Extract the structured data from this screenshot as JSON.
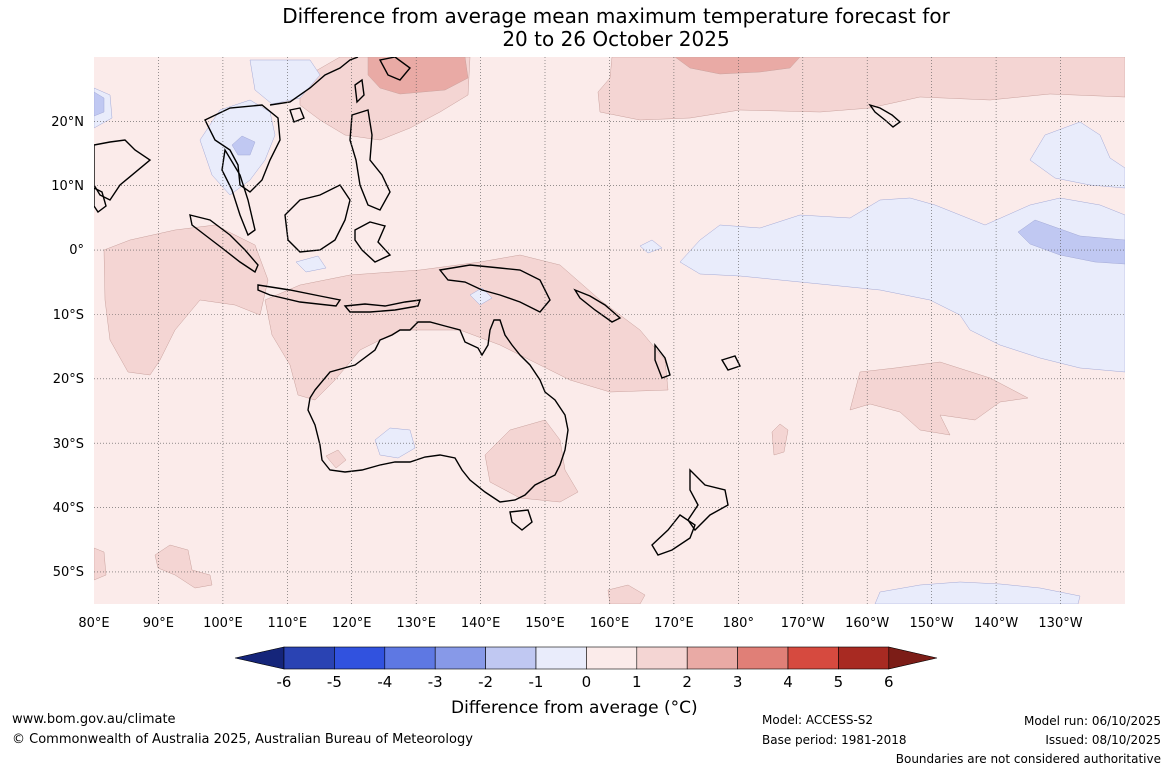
{
  "title": {
    "line1": "Difference from average mean maximum temperature forecast for",
    "line2": "20 to 26 October 2025"
  },
  "map": {
    "lon_ticks": [
      "80°E",
      "90°E",
      "100°E",
      "110°E",
      "120°E",
      "130°E",
      "140°E",
      "150°E",
      "160°E",
      "170°E",
      "180°",
      "170°W",
      "160°W",
      "150°W",
      "140°W",
      "130°W"
    ],
    "lat_ticks": [
      "20°N",
      "10°N",
      "0°",
      "10°S",
      "20°S",
      "30°S",
      "40°S",
      "50°S"
    ],
    "lon_range_deg_east": [
      80,
      240
    ],
    "lat_range_deg": [
      -55,
      30
    ]
  },
  "legend": {
    "ticks": [
      "-6",
      "-5",
      "-4",
      "-3",
      "-2",
      "-1",
      "0",
      "1",
      "2",
      "3",
      "4",
      "5",
      "6"
    ],
    "colors": [
      "#15257a",
      "#2a43b3",
      "#3152df",
      "#5e78e3",
      "#8799e8",
      "#c0c8f2",
      "#e9ecfb",
      "#fbebea",
      "#f4d5d3",
      "#e9aaa5",
      "#e07f77",
      "#d64a3f",
      "#a82a22",
      "#7c1d17"
    ],
    "label": "Difference from average (°C)"
  },
  "footer": {
    "website": "www.bom.gov.au/climate",
    "copyright": "© Commonwealth of Australia 2025, Australian Bureau of Meteorology",
    "model": "Model: ACCESS-S2",
    "base_period": "Base period: 1981-2018",
    "model_run": "Model run: 06/10/2025",
    "issued": "Issued: 08/10/2025",
    "disclaimer": "Boundaries are not considered authoritative"
  }
}
